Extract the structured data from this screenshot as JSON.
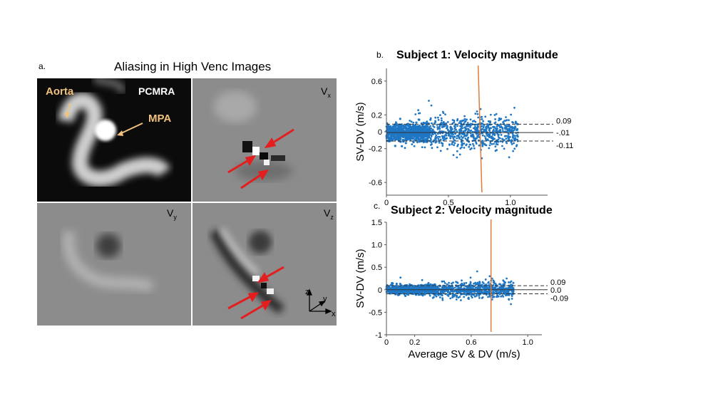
{
  "figure": {
    "panel_letter_a": "a.",
    "title": "Aliasing in High Venc Images",
    "tiles": {
      "pcmra_title": "PCMRA",
      "aorta_label": "Aorta",
      "mpa_label": "MPA",
      "vx_label": "V",
      "vx_sub": "x",
      "vy_label": "V",
      "vy_sub": "y",
      "vz_label": "V",
      "vz_sub": "z"
    },
    "axes_glyph": {
      "z": "z",
      "y": "y",
      "x": "x"
    }
  },
  "chart_data": [
    {
      "panel_letter": "b.",
      "type": "scatter",
      "title": "Subject 1: Velocity magnitude",
      "xlabel": "",
      "ylabel": "SV-DV (m/s)",
      "xlim": [
        0,
        1.3
      ],
      "ylim": [
        -0.75,
        0.75
      ],
      "xticks": [
        0,
        0.5,
        1.0
      ],
      "xtick_labels": [
        "0",
        "0.5",
        "1.0"
      ],
      "yticks": [
        0.6,
        0.2,
        0,
        -0.2,
        -0.6
      ],
      "ytick_labels": [
        "0.6",
        "0.2",
        "0",
        "-0.2",
        "-0.6"
      ],
      "mean_line": -0.01,
      "upper_loa": 0.09,
      "lower_loa": -0.11,
      "annotations": [
        "0.09",
        "-.01",
        "-0.11"
      ],
      "orange_line_x": [
        0.74,
        0.77
      ],
      "point_color": "#1f77c4",
      "orange_color": "#e07b39"
    },
    {
      "panel_letter": "c.",
      "type": "scatter",
      "title": "Subject 2: Velocity magnitude",
      "xlabel": "Average SV & DV (m/s)",
      "ylabel": "SV-DV (m/s)",
      "xlim": [
        0,
        1.1
      ],
      "ylim": [
        -1.0,
        1.5
      ],
      "xticks": [
        0,
        0.2,
        0.6,
        1.0
      ],
      "xtick_labels": [
        "0",
        "0.2",
        "0.6",
        "1.0"
      ],
      "yticks": [
        1.5,
        1.0,
        0.5,
        0,
        -0.5,
        -1
      ],
      "ytick_labels": [
        "1.5",
        "1.0",
        "0.5",
        "0",
        "-0.5",
        "-1"
      ],
      "mean_line": 0.0,
      "upper_loa": 0.09,
      "lower_loa": -0.09,
      "annotations": [
        "0.09",
        "0.0",
        "-0.09"
      ],
      "orange_line_x": [
        0.74,
        0.74
      ],
      "point_color": "#1f77c4",
      "orange_color": "#e07b39"
    }
  ]
}
